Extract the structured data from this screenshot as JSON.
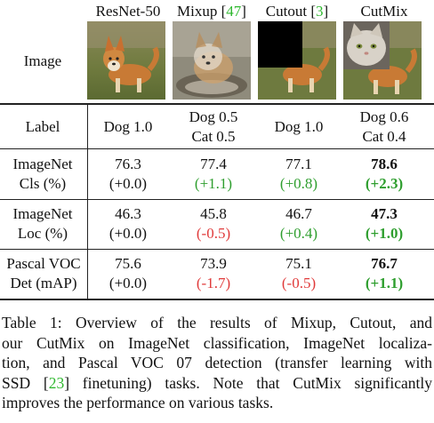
{
  "header": {
    "col1": "ResNet-50",
    "col2_name": "Mixup",
    "col2_ref": "47",
    "col3_name": "Cutout",
    "col3_ref": "3",
    "col4": "CutMix"
  },
  "rows": {
    "image_label": "Image",
    "label_row": {
      "name": "Label",
      "c1": "Dog 1.0",
      "c2a": "Dog 0.5",
      "c2b": "Cat 0.5",
      "c3": "Dog 1.0",
      "c4a": "Dog 0.6",
      "c4b": "Cat 0.4"
    },
    "cls": {
      "name1": "ImageNet",
      "name2": "Cls (%)",
      "v1": "76.3",
      "d1": "(+0.0)",
      "v2": "77.4",
      "d2": "(+1.1)",
      "v3": "77.1",
      "d3": "(+0.8)",
      "v4": "78.6",
      "d4": "(+2.3)"
    },
    "loc": {
      "name1": "ImageNet",
      "name2": "Loc (%)",
      "v1": "46.3",
      "d1": "(+0.0)",
      "v2": "45.8",
      "d2": "(-0.5)",
      "v3": "46.7",
      "d3": "(+0.4)",
      "v4": "47.3",
      "d4": "(+1.0)"
    },
    "det": {
      "name1": "Pascal VOC",
      "name2": "Det (mAP)",
      "v1": "75.6",
      "d1": "(+0.0)",
      "v2": "73.9",
      "d2": "(-1.7)",
      "v3": "75.1",
      "d3": "(-0.5)",
      "v4": "76.7",
      "d4": "(+1.1)"
    }
  },
  "caption": {
    "l1": "Table 1: Overview of the results of Mixup, Cutout, and",
    "l2": "our CutMix on ImageNet classification, ImageNet localiza-",
    "l3": "tion, and Pascal VOC 07 detection (transfer learning with",
    "l4a": "SSD [",
    "l4ref": "23",
    "l4b": "] finetuning) tasks. Note that CutMix significantly",
    "l5": "improves the performance on various tasks."
  },
  "colors": {
    "positive": "#2e9e2e",
    "negative": "#e03a3a",
    "citation": "#2fb82f"
  },
  "icons": {
    "resnet": "dog-image-icon",
    "mixup": "dog-cat-blend-image-icon",
    "cutout": "dog-black-patch-image-icon",
    "cutmix": "dog-cat-patch-image-icon"
  }
}
